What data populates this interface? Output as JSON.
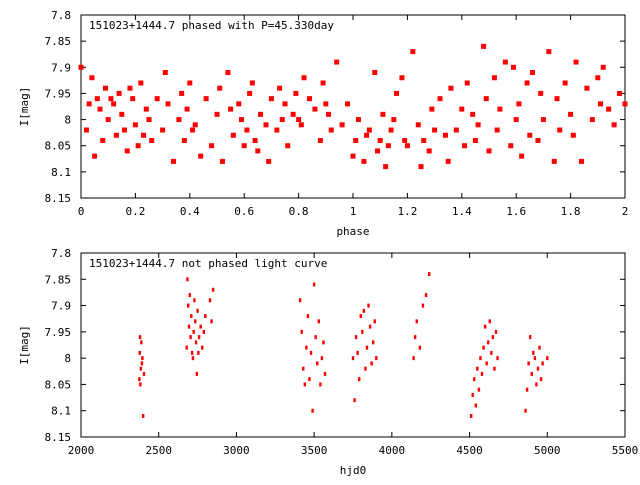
{
  "chart_data": [
    {
      "type": "scatter",
      "title": "151023+1444.7 phased with P=45.330day",
      "xlabel": "phase",
      "ylabel": "I[mag]",
      "xlim": [
        0,
        2
      ],
      "ylim": [
        8.15,
        7.8
      ],
      "y_reversed": true,
      "xticks": [
        "0",
        "0.2",
        "0.4",
        "0.6",
        "0.8",
        "1",
        "1.2",
        "1.4",
        "1.6",
        "1.8",
        "2"
      ],
      "yticks": [
        "7.8",
        "7.85",
        "7.9",
        "7.95",
        "8",
        "8.05",
        "8.1",
        "8.15"
      ],
      "grid": false,
      "marker_color": "#ff0000",
      "series": [
        {
          "x": [
            0.0,
            0.02,
            0.03,
            0.04,
            0.05,
            0.06,
            0.07,
            0.08,
            0.09,
            0.1,
            0.11,
            0.12,
            0.13,
            0.14,
            0.15,
            0.16,
            0.17,
            0.18,
            0.19,
            0.2,
            0.21,
            0.22,
            0.23,
            0.24,
            0.25,
            0.26,
            0.28,
            0.3,
            0.31,
            0.32,
            0.34,
            0.36,
            0.37,
            0.38,
            0.39,
            0.4,
            0.41,
            0.42,
            0.44,
            0.46,
            0.48,
            0.5,
            0.51,
            0.52,
            0.54,
            0.55,
            0.56,
            0.58,
            0.59,
            0.6,
            0.61,
            0.62,
            0.63,
            0.64,
            0.65,
            0.66,
            0.68,
            0.69,
            0.7,
            0.72,
            0.73,
            0.74,
            0.75,
            0.76,
            0.78,
            0.79,
            0.8,
            0.81,
            0.82,
            0.84,
            0.86,
            0.88,
            0.89,
            0.9,
            0.91,
            0.92,
            0.94,
            0.96,
            0.98,
            1.0,
            1.01,
            1.02,
            1.04,
            1.05,
            1.06,
            1.08,
            1.09,
            1.1,
            1.11,
            1.12,
            1.13,
            1.14,
            1.15,
            1.16,
            1.18,
            1.19,
            1.2,
            1.22,
            1.24,
            1.25,
            1.26,
            1.28,
            1.29,
            1.3,
            1.32,
            1.34,
            1.35,
            1.36,
            1.38,
            1.4,
            1.41,
            1.42,
            1.44,
            1.45,
            1.46,
            1.48,
            1.49,
            1.5,
            1.52,
            1.53,
            1.54,
            1.56,
            1.58,
            1.59,
            1.6,
            1.61,
            1.62,
            1.64,
            1.65,
            1.66,
            1.68,
            1.69,
            1.7,
            1.72,
            1.74,
            1.75,
            1.76,
            1.78,
            1.8,
            1.81,
            1.82,
            1.84,
            1.86,
            1.88,
            1.9,
            1.91,
            1.92,
            1.94,
            1.96,
            1.98,
            2.0
          ],
          "y": [
            7.9,
            8.02,
            7.97,
            7.92,
            8.07,
            7.96,
            7.98,
            8.04,
            7.94,
            8.0,
            7.96,
            7.97,
            8.03,
            7.95,
            7.99,
            8.02,
            8.06,
            7.94,
            7.96,
            8.01,
            8.05,
            7.93,
            8.03,
            7.98,
            8.0,
            8.04,
            7.96,
            8.02,
            7.91,
            7.97,
            8.08,
            8.0,
            7.95,
            8.04,
            7.98,
            7.93,
            8.02,
            8.01,
            8.07,
            7.96,
            8.05,
            7.99,
            7.94,
            8.08,
            7.91,
            7.98,
            8.03,
            7.97,
            8.0,
            8.05,
            8.02,
            7.95,
            7.93,
            8.04,
            8.06,
            7.99,
            8.01,
            8.08,
            7.96,
            8.02,
            7.94,
            8.0,
            7.97,
            8.05,
            7.99,
            7.95,
            8.0,
            8.01,
            7.92,
            7.96,
            7.98,
            8.04,
            7.93,
            7.97,
            7.99,
            8.02,
            7.89,
            8.01,
            7.97,
            8.07,
            8.04,
            8.0,
            8.08,
            8.03,
            8.02,
            7.91,
            8.06,
            8.04,
            7.99,
            8.09,
            8.05,
            8.02,
            8.0,
            7.95,
            7.92,
            8.04,
            8.05,
            7.87,
            8.01,
            8.09,
            8.04,
            8.06,
            7.98,
            8.02,
            7.96,
            8.03,
            8.08,
            7.94,
            8.02,
            7.98,
            8.05,
            7.93,
            7.99,
            8.04,
            8.01,
            7.86,
            7.96,
            8.06,
            7.92,
            8.02,
            7.98,
            7.89,
            8.05,
            7.9,
            8.0,
            7.97,
            8.07,
            7.93,
            8.03,
            7.91,
            8.04,
            7.95,
            8.0,
            7.87,
            8.08,
            7.96,
            8.02,
            7.93,
            7.99,
            8.03,
            7.89,
            8.08,
            7.94,
            8.0,
            7.92,
            7.97,
            7.9,
            7.98,
            8.01,
            7.95,
            7.97
          ]
        }
      ]
    },
    {
      "type": "scatter",
      "title": "151023+1444.7 not phased light curve",
      "xlabel": "hjd0",
      "ylabel": "I[mag]",
      "xlim": [
        2000,
        5500
      ],
      "ylim": [
        8.15,
        7.8
      ],
      "y_reversed": true,
      "xticks": [
        "2000",
        "2500",
        "3000",
        "3500",
        "4000",
        "4500",
        "5000",
        "5500"
      ],
      "yticks": [
        "7.8",
        "7.85",
        "7.9",
        "7.95",
        "8",
        "8.05",
        "8.1",
        "8.15"
      ],
      "grid": false,
      "marker_color": "#ff0000",
      "series": [
        {
          "x": [
            2375,
            2378,
            2380,
            2382,
            2385,
            2388,
            2392,
            2395,
            2400,
            2405,
            2680,
            2685,
            2690,
            2695,
            2700,
            2705,
            2710,
            2715,
            2720,
            2725,
            2730,
            2735,
            2740,
            2745,
            2750,
            2755,
            2760,
            2770,
            2780,
            2790,
            2800,
            2830,
            2840,
            2850,
            3410,
            3420,
            3430,
            3440,
            3450,
            3460,
            3470,
            3480,
            3490,
            3500,
            3510,
            3520,
            3530,
            3540,
            3550,
            3560,
            3570,
            3750,
            3760,
            3770,
            3780,
            3790,
            3800,
            3810,
            3820,
            3830,
            3840,
            3850,
            3860,
            3870,
            3880,
            3890,
            3900,
            4140,
            4150,
            4160,
            4180,
            4200,
            4220,
            4240,
            4510,
            4520,
            4530,
            4540,
            4550,
            4560,
            4570,
            4580,
            4590,
            4600,
            4610,
            4620,
            4630,
            4640,
            4650,
            4660,
            4670,
            4680,
            4860,
            4870,
            4880,
            4890,
            4900,
            4910,
            4920,
            4930,
            4940,
            4950,
            4960,
            4970,
            5000
          ],
          "y": [
            8.04,
            7.99,
            7.96,
            8.05,
            8.02,
            7.97,
            8.01,
            8.0,
            8.11,
            8.03,
            7.98,
            7.85,
            7.9,
            7.94,
            7.88,
            7.96,
            7.92,
            7.99,
            8.0,
            7.95,
            7.89,
            7.93,
            7.97,
            8.03,
            7.91,
            7.99,
            7.96,
            7.94,
            7.98,
            7.95,
            7.92,
            7.89,
            7.93,
            7.87,
            7.89,
            7.95,
            8.02,
            8.05,
            7.98,
            7.92,
            8.04,
            7.99,
            8.1,
            7.86,
            7.96,
            8.01,
            7.93,
            8.05,
            8.0,
            7.97,
            8.03,
            8.0,
            8.08,
            7.96,
            7.99,
            8.04,
            7.92,
            7.95,
            7.91,
            8.02,
            7.98,
            7.9,
            7.94,
            8.01,
            7.97,
            7.93,
            8.0,
            8.0,
            7.96,
            7.93,
            7.98,
            7.9,
            7.88,
            7.84,
            8.11,
            8.07,
            8.04,
            8.09,
            8.02,
            8.06,
            8.0,
            8.03,
            7.98,
            7.94,
            8.01,
            7.97,
            7.93,
            7.99,
            7.96,
            8.02,
            7.95,
            8.0,
            8.1,
            8.06,
            8.01,
            7.96,
            8.03,
            7.99,
            8.0,
            8.05,
            8.02,
            7.98,
            8.04,
            8.01,
            8.0
          ]
        }
      ]
    }
  ]
}
